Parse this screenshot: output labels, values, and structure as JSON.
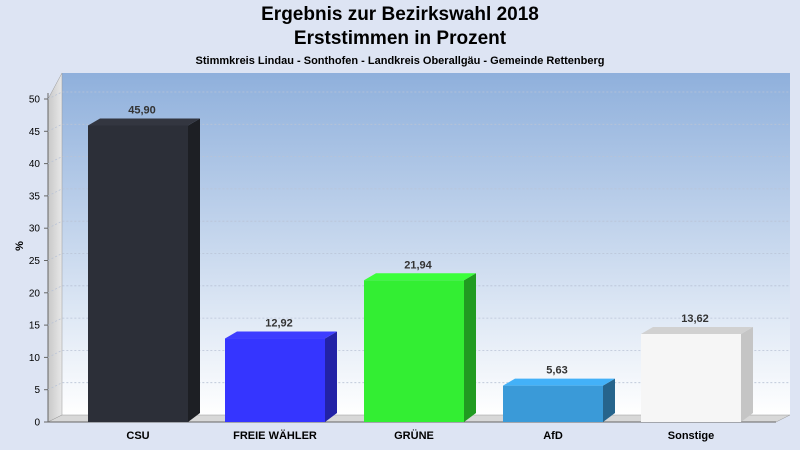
{
  "chart_data": {
    "type": "bar",
    "title": "Ergebnis zur Bezirkswahl 2018",
    "subtitle1": "Erststimmen in Prozent",
    "subtitle2": "Stimmkreis Lindau - Sonthofen - Landkreis Oberallgäu - Gemeinde Rettenberg",
    "ylabel": "%",
    "ylim": [
      0,
      50
    ],
    "yticks": [
      0,
      5,
      10,
      15,
      20,
      25,
      30,
      35,
      40,
      45,
      50
    ],
    "categories": [
      "CSU",
      "FREIE WÄHLER",
      "GRÜNE",
      "AfD",
      "Sonstige"
    ],
    "values": [
      45.9,
      12.92,
      21.94,
      5.63,
      13.62
    ],
    "value_labels": [
      "45,90",
      "12,92",
      "21,94",
      "5,63",
      "13,62"
    ],
    "colors": [
      "#2c2f38",
      "#3535ff",
      "#33ee33",
      "#3a9ad8",
      "#f6f6f6"
    ],
    "grid": true,
    "legend": "none"
  }
}
